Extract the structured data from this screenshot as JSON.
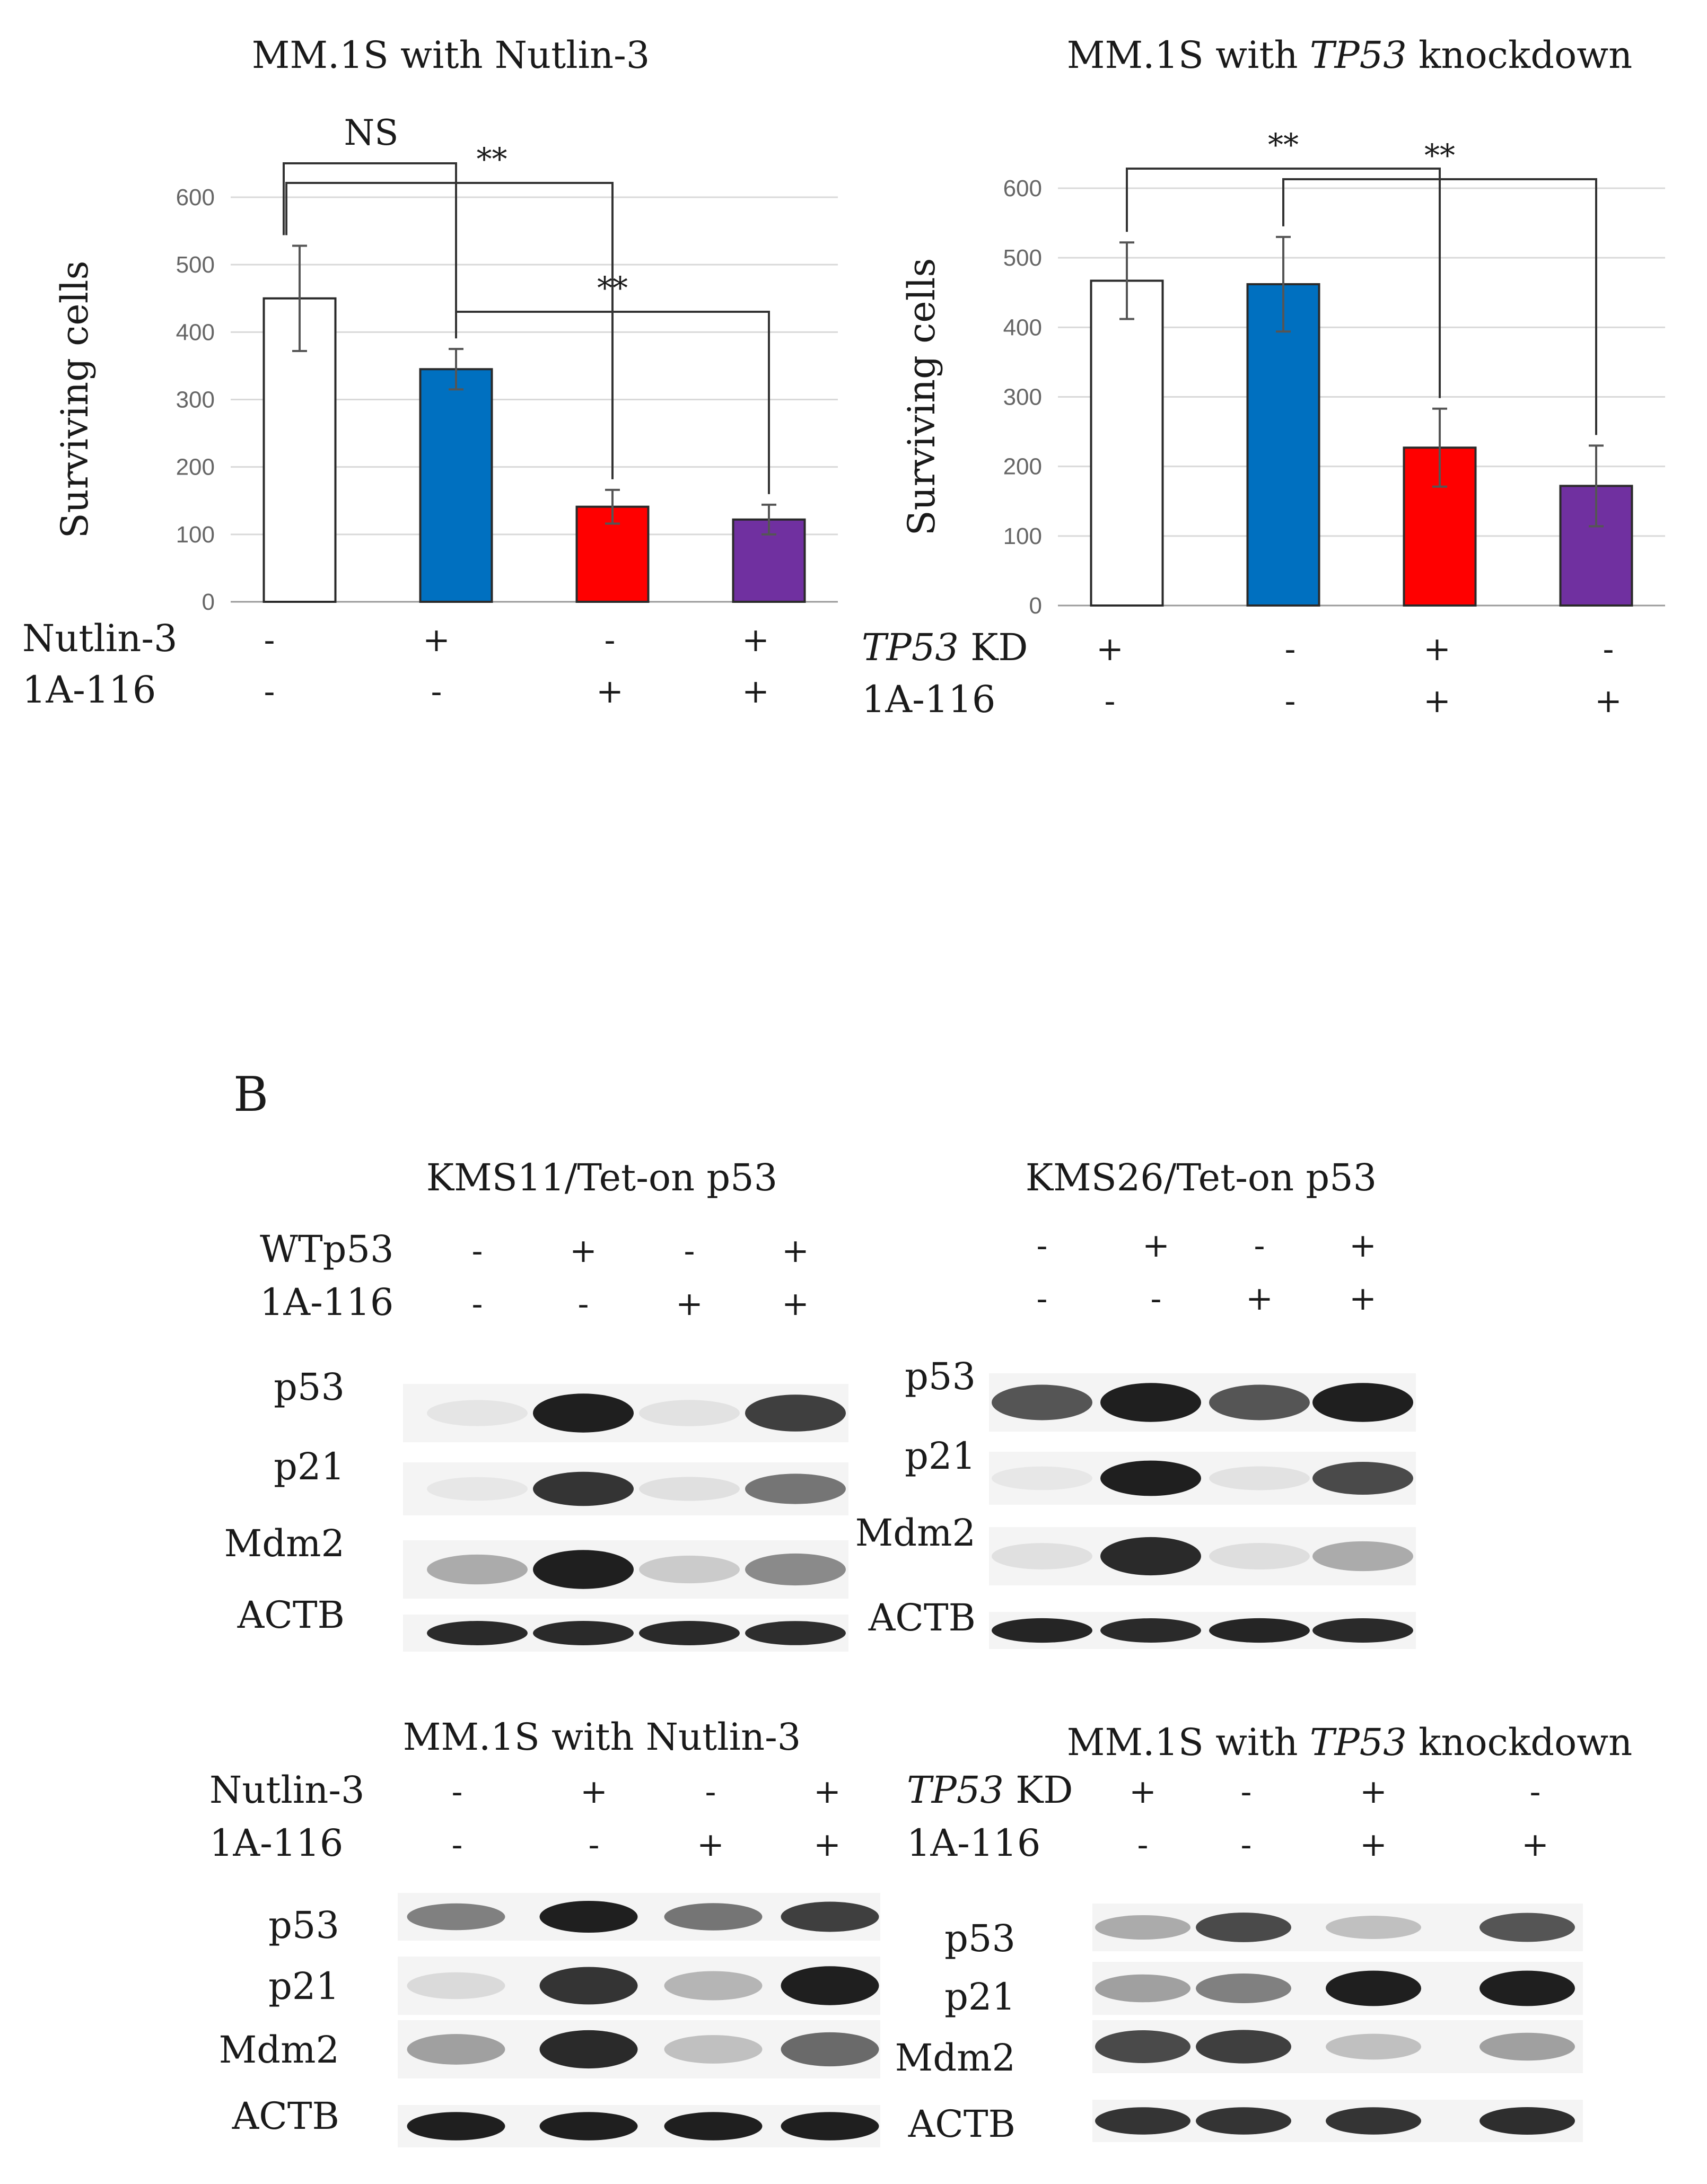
{
  "chart_data": [
    {
      "type": "bar",
      "title": "MM.1S with Nutlin-3",
      "title_italic_part": "",
      "ylabel": "Surviving cells",
      "xlabel": "",
      "ylim": [
        0,
        600
      ],
      "yticks": [
        "0",
        "100",
        "200",
        "300",
        "400",
        "500",
        "600"
      ],
      "grid": true,
      "values": [
        450,
        345,
        141,
        122
      ],
      "errors": [
        78,
        30,
        25,
        22
      ],
      "colors": [
        "#ffffff",
        "#0070c0",
        "#ff0000",
        "#7030a0"
      ],
      "conditions": [
        {
          "label": "Nutlin-3",
          "label_italic": "",
          "signs": [
            "-",
            "+",
            "-",
            "+"
          ]
        },
        {
          "label": "1A-116",
          "label_italic": "",
          "signs": [
            "-",
            "-",
            "+",
            "+"
          ]
        }
      ],
      "significance": [
        {
          "from": 0,
          "to": 1,
          "label": "NS"
        },
        {
          "from": 0,
          "to": 2,
          "label": "**"
        },
        {
          "from": 1,
          "to": 3,
          "label": "**"
        }
      ]
    },
    {
      "type": "bar",
      "title": " knockdown",
      "title_italic_part": "TP53",
      "title_prefix": "MM.1S with ",
      "ylabel": "Surviving cells",
      "xlabel": "",
      "ylim": [
        0,
        600
      ],
      "yticks": [
        "0",
        "100",
        "200",
        "300",
        "400",
        "500",
        "600"
      ],
      "grid": true,
      "values": [
        467,
        462,
        227,
        172
      ],
      "errors": [
        55,
        68,
        56,
        58
      ],
      "colors": [
        "#ffffff",
        "#0070c0",
        "#ff0000",
        "#7030a0"
      ],
      "conditions": [
        {
          "label": " KD",
          "label_italic": "TP53",
          "signs": [
            "+",
            "-",
            "+",
            "-"
          ]
        },
        {
          "label": "1A-116",
          "label_italic": "",
          "signs": [
            "-",
            "-",
            "+",
            "+"
          ]
        }
      ],
      "significance": [
        {
          "from": 0,
          "to": 2,
          "label": "**"
        },
        {
          "from": 1,
          "to": 3,
          "label": "**"
        }
      ]
    }
  ],
  "panel_b": {
    "letter": "B",
    "blots": [
      {
        "title": "KMS11/Tet-on p53",
        "title_prefix": "",
        "title_italic": "",
        "title_suffix": "",
        "conditions": [
          {
            "label": "WTp53",
            "label_italic": "",
            "signs": [
              "-",
              "+",
              "-",
              "+"
            ]
          },
          {
            "label": "1A-116",
            "label_italic": "",
            "signs": [
              "-",
              "-",
              "+",
              "+"
            ]
          }
        ],
        "rows": [
          {
            "name": "p53",
            "intensity": [
              0.03,
              0.95,
              0.04,
              0.8
            ]
          },
          {
            "name": "p21",
            "intensity": [
              0.02,
              0.85,
              0.05,
              0.55
            ]
          },
          {
            "name": "Mdm2",
            "intensity": [
              0.3,
              0.95,
              0.15,
              0.45
            ]
          },
          {
            "name": "ACTB",
            "intensity": [
              0.9,
              0.9,
              0.9,
              0.88
            ]
          }
        ]
      },
      {
        "title": "KMS26/Tet-on p53",
        "title_prefix": "",
        "title_italic": "",
        "title_suffix": "",
        "conditions": [
          {
            "label": "",
            "label_italic": "",
            "signs": [
              "-",
              "+",
              "-",
              "+"
            ]
          },
          {
            "label": "",
            "label_italic": "",
            "signs": [
              "-",
              "-",
              "+",
              "+"
            ]
          }
        ],
        "rows": [
          {
            "name": "p53",
            "intensity": [
              0.7,
              0.95,
              0.7,
              0.95
            ]
          },
          {
            "name": "p21",
            "intensity": [
              0.02,
              0.95,
              0.04,
              0.75
            ]
          },
          {
            "name": "Mdm2",
            "intensity": [
              0.05,
              0.9,
              0.06,
              0.3
            ]
          },
          {
            "name": "ACTB",
            "intensity": [
              0.92,
              0.9,
              0.92,
              0.9
            ]
          }
        ]
      },
      {
        "title": "MM.1S with Nutlin-3",
        "title_prefix": "",
        "title_italic": "",
        "title_suffix": "",
        "conditions": [
          {
            "label": "Nutlin-3",
            "label_italic": "",
            "signs": [
              "-",
              "+",
              "-",
              "+"
            ]
          },
          {
            "label": "1A-116",
            "label_italic": "",
            "signs": [
              "-",
              "-",
              "+",
              "+"
            ]
          }
        ],
        "rows": [
          {
            "name": "p53",
            "intensity": [
              0.5,
              0.95,
              0.55,
              0.8
            ]
          },
          {
            "name": "p21",
            "intensity": [
              0.08,
              0.85,
              0.25,
              0.95
            ]
          },
          {
            "name": "Mdm2",
            "intensity": [
              0.35,
              0.9,
              0.2,
              0.6
            ]
          },
          {
            "name": "ACTB",
            "intensity": [
              0.95,
              0.95,
              0.95,
              0.95
            ]
          }
        ]
      },
      {
        "title": "",
        "title_prefix": "MM.1S with ",
        "title_italic": "TP53",
        "title_suffix": " knockdown",
        "conditions": [
          {
            "label": " KD",
            "label_italic": "TP53",
            "signs": [
              "+",
              "-",
              "+",
              "-"
            ]
          },
          {
            "label": "1A-116",
            "label_italic": "",
            "signs": [
              "-",
              "-",
              "+",
              "+"
            ]
          }
        ],
        "rows": [
          {
            "name": "p53",
            "intensity": [
              0.3,
              0.75,
              0.2,
              0.7
            ]
          },
          {
            "name": "p21",
            "intensity": [
              0.35,
              0.5,
              0.95,
              0.95
            ]
          },
          {
            "name": "Mdm2",
            "intensity": [
              0.75,
              0.8,
              0.2,
              0.35
            ]
          },
          {
            "name": "ACTB",
            "intensity": [
              0.85,
              0.85,
              0.85,
              0.88
            ]
          }
        ]
      }
    ]
  }
}
